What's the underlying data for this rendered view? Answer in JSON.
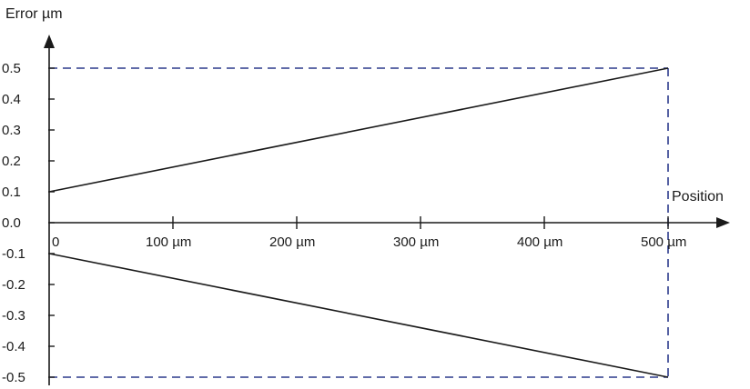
{
  "chart_data": {
    "type": "line",
    "ylabel": "Error µm",
    "xlabel": "Position",
    "xlim": [
      0,
      500
    ],
    "ylim": [
      -0.5,
      0.5
    ],
    "yticks": [
      0.5,
      0.4,
      0.3,
      0.2,
      0.1,
      0.0,
      -0.1,
      -0.2,
      -0.3,
      -0.4,
      -0.5
    ],
    "ytick_labels": [
      "0.5",
      "0.4",
      "0.3",
      "0.2",
      "0.1",
      "0.0",
      "-0.1",
      "-0.2",
      "-0.3",
      "-0.4",
      "-0.5"
    ],
    "xticks": [
      0,
      100,
      200,
      300,
      400,
      500
    ],
    "xtick_labels": [
      "0",
      "100 µm",
      "200 µm",
      "300 µm",
      "400 µm",
      "500 µm"
    ],
    "grid": false,
    "series": [
      {
        "x": [
          0,
          500
        ],
        "y": [
          0.1,
          0.5
        ],
        "style": "solid",
        "color": "#1a1a1a"
      },
      {
        "x": [
          0,
          500
        ],
        "y": [
          -0.1,
          -0.5
        ],
        "style": "solid",
        "color": "#1a1a1a"
      }
    ],
    "reference_lines": [
      {
        "x": [
          0,
          500
        ],
        "y": [
          0.5,
          0.5
        ],
        "style": "dashed",
        "color": "#2b3a8c"
      },
      {
        "x": [
          0,
          500
        ],
        "y": [
          -0.5,
          -0.5
        ],
        "style": "dashed",
        "color": "#2b3a8c"
      },
      {
        "x": [
          500,
          500
        ],
        "y": [
          0.5,
          -0.5
        ],
        "style": "dashed",
        "color": "#2b3a8c"
      }
    ]
  }
}
